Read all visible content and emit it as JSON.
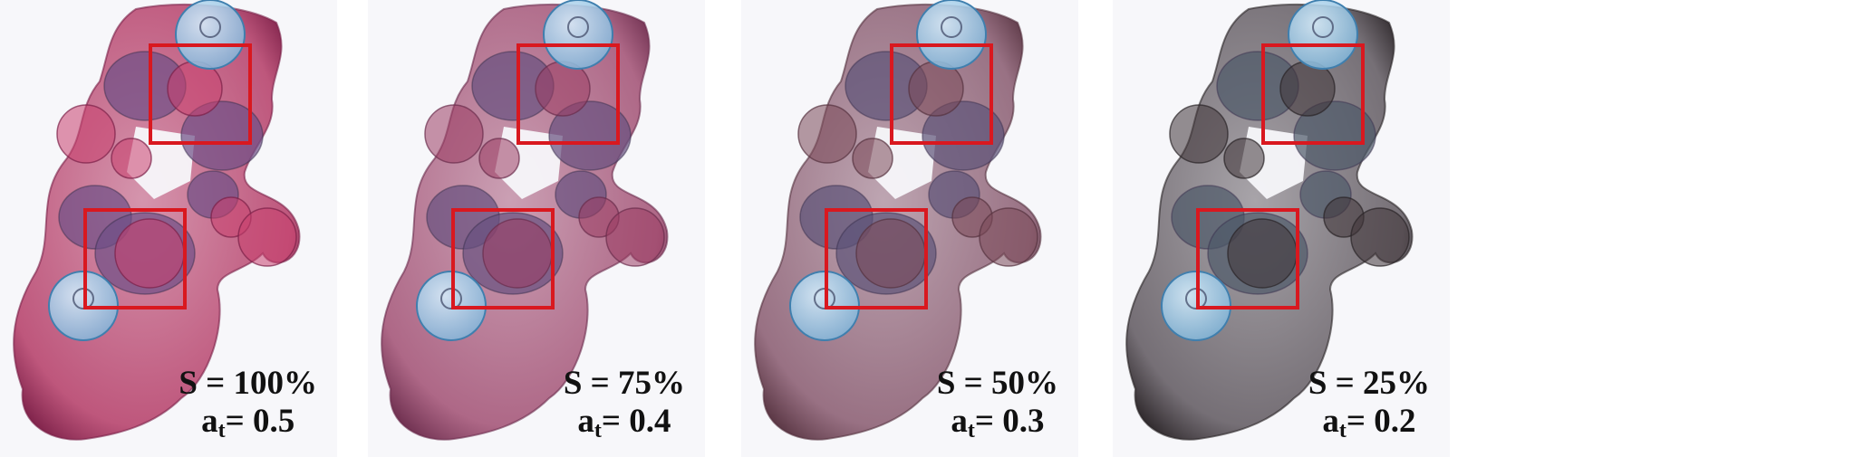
{
  "panels": [
    {
      "s_label": "S = 100%",
      "a_symbol": "a",
      "a_sub": "t",
      "a_value": "= 0.5",
      "body_color": "#b8456e",
      "edge_color": "#7a1f47",
      "blob_color": "#6d4f86",
      "sphere_color": "#c9406e"
    },
    {
      "s_label": "S = 75%",
      "a_symbol": "a",
      "a_sub": "t",
      "a_value": "= 0.4",
      "body_color": "#a6587a",
      "edge_color": "#6a2c4c",
      "blob_color": "#67507f",
      "sphere_color": "#9a3c63"
    },
    {
      "s_label": "S = 50%",
      "a_symbol": "a",
      "a_sub": "t",
      "a_value": "= 0.3",
      "body_color": "#8e6276",
      "edge_color": "#55323f",
      "blob_color": "#5d5377",
      "sphere_color": "#7a4858"
    },
    {
      "s_label": "S = 25%",
      "a_symbol": "a",
      "a_sub": "t",
      "a_value": "= 0.2",
      "body_color": "#676067",
      "edge_color": "#2a2427",
      "blob_color": "#4d5868",
      "sphere_color": "#403438"
    }
  ],
  "colors": {
    "background": "#f7f7fa",
    "highlight_box": "#d9181f",
    "blue_sphere": "#7fb6db",
    "blue_sphere_edge": "#3f7fae"
  }
}
